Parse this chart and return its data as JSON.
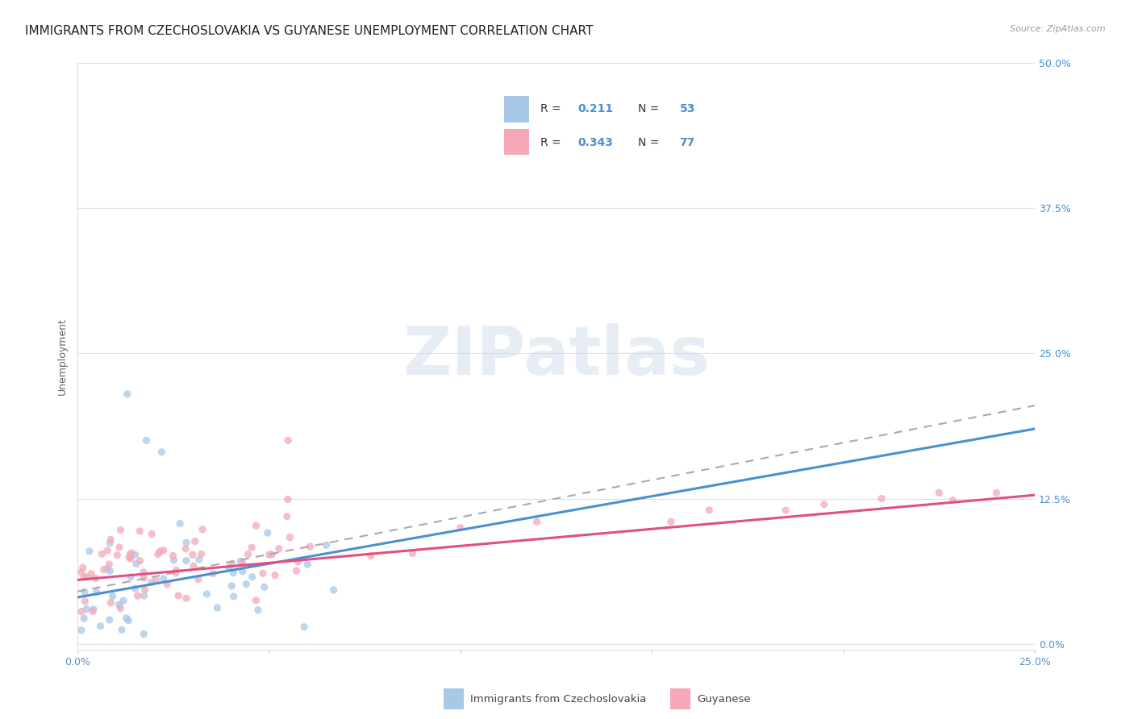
{
  "title": "IMMIGRANTS FROM CZECHOSLOVAKIA VS GUYANESE UNEMPLOYMENT CORRELATION CHART",
  "source": "Source: ZipAtlas.com",
  "ylabel": "Unemployment",
  "ytick_labels": [
    "0.0%",
    "12.5%",
    "25.0%",
    "37.5%",
    "50.0%"
  ],
  "ytick_values": [
    0.0,
    0.125,
    0.25,
    0.375,
    0.5
  ],
  "xlim": [
    0.0,
    0.25
  ],
  "ylim": [
    -0.005,
    0.5
  ],
  "blue_color": "#a8c8e8",
  "pink_color": "#f4a8b8",
  "blue_line_color": "#4a90d0",
  "pink_line_color": "#e05080",
  "dashed_line_color": "#aaaaaa",
  "legend_R1": "0.211",
  "legend_N1": "53",
  "legend_R2": "0.343",
  "legend_N2": "77",
  "legend_label1": "Immigrants from Czechoslovakia",
  "legend_label2": "Guyanese",
  "blue_trend_x": [
    0.0,
    0.25
  ],
  "blue_trend_y": [
    0.04,
    0.185
  ],
  "pink_trend_x": [
    0.0,
    0.25
  ],
  "pink_trend_y": [
    0.055,
    0.128
  ],
  "dashed_trend_x": [
    0.0,
    0.25
  ],
  "dashed_trend_y": [
    0.045,
    0.205
  ],
  "background_color": "#ffffff",
  "grid_color": "#e0e0e0",
  "title_fontsize": 11,
  "axis_label_fontsize": 9,
  "tick_fontsize": 9,
  "scatter_alpha": 0.75,
  "scatter_size": 45
}
